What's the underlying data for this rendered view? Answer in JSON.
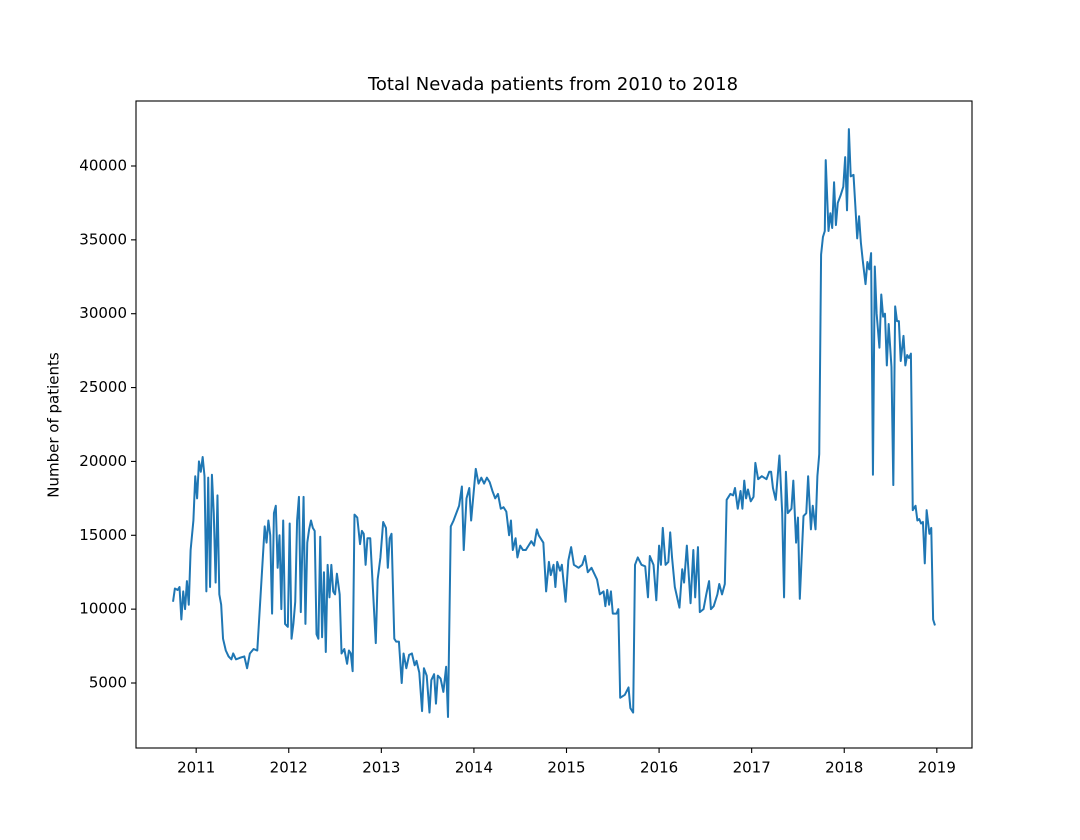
{
  "chart_data": {
    "type": "line",
    "title": "Total Nevada patients from 2010 to 2018",
    "y_label": "Number of patients",
    "color": "#1f77b4",
    "xlim": [
      2010.35,
      2019.38
    ],
    "xticks": [
      2011,
      2012,
      2013,
      2014,
      2015,
      2016,
      2017,
      2018,
      2019
    ],
    "ylim": [
      600,
      44400
    ],
    "yticks": [
      5000,
      10000,
      15000,
      20000,
      25000,
      30000,
      35000,
      40000
    ],
    "x": [
      2010.75,
      2010.77,
      2010.8,
      2010.82,
      2010.84,
      2010.86,
      2010.88,
      2010.9,
      2010.92,
      2010.94,
      2010.97,
      2010.99,
      2011.01,
      2011.03,
      2011.05,
      2011.07,
      2011.09,
      2011.11,
      2011.13,
      2011.15,
      2011.17,
      2011.19,
      2011.21,
      2011.23,
      2011.25,
      2011.27,
      2011.29,
      2011.32,
      2011.35,
      2011.38,
      2011.4,
      2011.43,
      2011.47,
      2011.52,
      2011.55,
      2011.58,
      2011.62,
      2011.66,
      2011.74,
      2011.76,
      2011.78,
      2011.8,
      2011.82,
      2011.84,
      2011.86,
      2011.88,
      2011.9,
      2011.92,
      2011.94,
      2011.96,
      2011.99,
      2012.01,
      2012.03,
      2012.05,
      2012.07,
      2012.09,
      2012.11,
      2012.13,
      2012.16,
      2012.18,
      2012.2,
      2012.22,
      2012.24,
      2012.26,
      2012.28,
      2012.3,
      2012.32,
      2012.34,
      2012.36,
      2012.38,
      2012.4,
      2012.42,
      2012.44,
      2012.46,
      2012.48,
      2012.5,
      2012.52,
      2012.55,
      2012.57,
      2012.6,
      2012.63,
      2012.65,
      2012.67,
      2012.69,
      2012.71,
      2012.74,
      2012.77,
      2012.79,
      2012.81,
      2012.83,
      2012.85,
      2012.88,
      2012.94,
      2012.96,
      2012.99,
      2013.02,
      2013.05,
      2013.07,
      2013.09,
      2013.11,
      2013.14,
      2013.16,
      2013.19,
      2013.22,
      2013.24,
      2013.27,
      2013.3,
      2013.33,
      2013.36,
      2013.38,
      2013.41,
      2013.44,
      2013.46,
      2013.49,
      2013.52,
      2013.54,
      2013.57,
      2013.59,
      2013.61,
      2013.64,
      2013.67,
      2013.7,
      2013.72,
      2013.75,
      2013.78,
      2013.81,
      2013.84,
      2013.87,
      2013.89,
      2013.92,
      2013.95,
      2013.97,
      2014.02,
      2014.05,
      2014.08,
      2014.11,
      2014.14,
      2014.17,
      2014.2,
      2014.23,
      2014.26,
      2014.29,
      2014.32,
      2014.35,
      2014.38,
      2014.4,
      2014.42,
      2014.45,
      2014.47,
      2014.5,
      2014.53,
      2014.56,
      2014.59,
      2014.62,
      2014.65,
      2014.68,
      2014.7,
      2014.75,
      2014.78,
      2014.81,
      2014.83,
      2014.86,
      2014.88,
      2014.9,
      2014.93,
      2014.95,
      2014.99,
      2015.02,
      2015.05,
      2015.08,
      2015.13,
      2015.17,
      2015.2,
      2015.23,
      2015.27,
      2015.3,
      2015.33,
      2015.36,
      2015.4,
      2015.42,
      2015.44,
      2015.46,
      2015.48,
      2015.5,
      2015.54,
      2015.56,
      2015.58,
      2015.63,
      2015.67,
      2015.69,
      2015.72,
      2015.74,
      2015.77,
      2015.81,
      2015.85,
      2015.88,
      2015.9,
      2015.94,
      2015.97,
      2016,
      2016.02,
      2016.04,
      2016.07,
      2016.1,
      2016.12,
      2016.14,
      2016.17,
      2016.22,
      2016.25,
      2016.27,
      2016.3,
      2016.34,
      2016.37,
      2016.39,
      2016.42,
      2016.44,
      2016.48,
      2016.51,
      2016.54,
      2016.56,
      2016.59,
      2016.63,
      2016.65,
      2016.68,
      2016.71,
      2016.73,
      2016.77,
      2016.8,
      2016.82,
      2016.85,
      2016.88,
      2016.9,
      2016.92,
      2016.94,
      2016.96,
      2016.99,
      2017.02,
      2017.04,
      2017.07,
      2017.11,
      2017.16,
      2017.19,
      2017.21,
      2017.23,
      2017.26,
      2017.3,
      2017.33,
      2017.35,
      2017.37,
      2017.39,
      2017.43,
      2017.45,
      2017.48,
      2017.5,
      2017.52,
      2017.56,
      2017.59,
      2017.61,
      2017.64,
      2017.66,
      2017.69,
      2017.71,
      2017.73,
      2017.75,
      2017.77,
      2017.79,
      2017.8,
      2017.83,
      2017.85,
      2017.87,
      2017.89,
      2017.91,
      2017.93,
      2017.96,
      2017.99,
      2018.01,
      2018.03,
      2018.05,
      2018.07,
      2018.1,
      2018.12,
      2018.14,
      2018.16,
      2018.18,
      2018.2,
      2018.23,
      2018.25,
      2018.27,
      2018.29,
      2018.31,
      2018.33,
      2018.35,
      2018.38,
      2018.4,
      2018.42,
      2018.44,
      2018.46,
      2018.48,
      2018.51,
      2018.53,
      2018.55,
      2018.57,
      2018.59,
      2018.61,
      2018.64,
      2018.66,
      2018.68,
      2018.7,
      2018.72,
      2018.74,
      2018.77,
      2018.79,
      2018.81,
      2018.83,
      2018.85,
      2018.87,
      2018.89,
      2018.92,
      2018.94,
      2018.96,
      2018.98
    ],
    "values": [
      10500,
      11400,
      11300,
      11500,
      9300,
      11200,
      10000,
      11900,
      10300,
      14000,
      16000,
      19000,
      17500,
      20000,
      19300,
      20300,
      19000,
      11200,
      18900,
      11500,
      19100,
      16500,
      11800,
      17700,
      11000,
      10300,
      8000,
      7200,
      6800,
      6600,
      7000,
      6600,
      6700,
      6800,
      6000,
      7000,
      7300,
      7200,
      15600,
      14500,
      16000,
      15000,
      9700,
      16500,
      17000,
      12800,
      15000,
      10000,
      16000,
      9000,
      8800,
      15800,
      8000,
      9000,
      10500,
      16000,
      17600,
      9800,
      17600,
      9000,
      14500,
      15400,
      16000,
      15500,
      15300,
      8300,
      8000,
      14900,
      8100,
      12500,
      7100,
      13000,
      10800,
      13000,
      11200,
      11000,
      12400,
      11000,
      7000,
      7300,
      6300,
      7200,
      7000,
      5800,
      16400,
      16200,
      14400,
      15300,
      15100,
      13000,
      14800,
      14800,
      7700,
      12000,
      13500,
      15900,
      15500,
      12800,
      14800,
      15100,
      8000,
      7800,
      7800,
      5000,
      7000,
      6000,
      6900,
      7000,
      6200,
      6500,
      5700,
      3100,
      6000,
      5500,
      3000,
      5200,
      5600,
      3600,
      5500,
      5300,
      4400,
      6100,
      2700,
      15600,
      16000,
      16500,
      17000,
      18300,
      14000,
      17500,
      18200,
      16000,
      19500,
      18500,
      18900,
      18500,
      18900,
      18600,
      18000,
      17500,
      17800,
      16800,
      16900,
      16600,
      15000,
      16000,
      14000,
      14800,
      13500,
      14300,
      14000,
      14000,
      14300,
      14600,
      14300,
      15400,
      15000,
      14500,
      11200,
      13200,
      12300,
      13000,
      11500,
      13200,
      12600,
      13000,
      10500,
      13300,
      14200,
      13000,
      12800,
      13000,
      13600,
      12500,
      12800,
      12400,
      12000,
      11000,
      11200,
      10200,
      11300,
      10300,
      11200,
      9700,
      9700,
      10000,
      4000,
      4200,
      4700,
      3300,
      3000,
      13000,
      13500,
      13000,
      12900,
      10800,
      13600,
      13000,
      10600,
      14300,
      13000,
      15500,
      13000,
      13200,
      15200,
      13500,
      11500,
      10100,
      12700,
      11800,
      14300,
      10400,
      14000,
      10800,
      14200,
      9800,
      10000,
      11000,
      11900,
      10000,
      10200,
      11000,
      11700,
      11000,
      11700,
      17400,
      17800,
      17700,
      18200,
      16800,
      18000,
      16800,
      18700,
      17500,
      18100,
      17300,
      17600,
      19900,
      18800,
      19000,
      18800,
      19300,
      19300,
      18200,
      17400,
      20400,
      16500,
      10800,
      19300,
      16500,
      16800,
      18700,
      14500,
      16200,
      10700,
      16300,
      16500,
      19000,
      15400,
      17000,
      15400,
      19000,
      20500,
      34000,
      35200,
      35600,
      40400,
      35600,
      36800,
      35800,
      38900,
      36000,
      37500,
      38000,
      38600,
      40600,
      37000,
      42500,
      39300,
      39400,
      37300,
      35100,
      36600,
      34800,
      33600,
      32000,
      33500,
      33000,
      34100,
      19100,
      33200,
      30000,
      27700,
      31300,
      29800,
      30000,
      26500,
      29300,
      26400,
      18400,
      30500,
      29500,
      29500,
      26800,
      28500,
      26500,
      27200,
      27000,
      27300,
      16700,
      17000,
      16000,
      16100,
      15800,
      15900,
      13100,
      16700,
      15100,
      15500,
      9300,
      8900
    ]
  }
}
